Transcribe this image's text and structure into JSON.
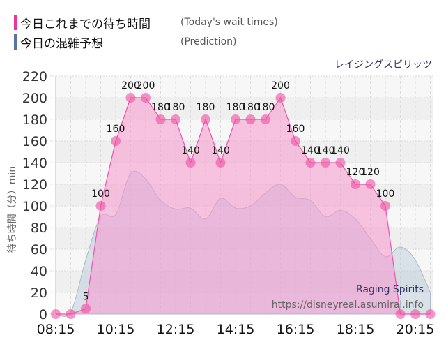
{
  "legend": {
    "actual": {
      "label": "今日これまでの待ち時間",
      "sub": "(Today's wait times)",
      "color": "#ee3399"
    },
    "prediction": {
      "label": "今日の混雑予想",
      "sub": "(Prediction)",
      "color": "#5a74a8"
    }
  },
  "ride_name": "レイジングスピリッツ",
  "watermark": {
    "name": "Raging Spirits",
    "url": "https://disneyreal.asumirai.info"
  },
  "chart_data": {
    "type": "area",
    "title": "レイジングスピリッツ",
    "xlabel": "",
    "ylabel": "待ち時間（分）min",
    "ylim": [
      0,
      220
    ],
    "yticks": [
      0,
      20,
      40,
      60,
      80,
      100,
      120,
      140,
      160,
      180,
      200,
      220
    ],
    "xticks": [
      "08:15",
      "10:15",
      "12:15",
      "14:15",
      "16:15",
      "18:15",
      "20:15"
    ],
    "x": [
      "08:15",
      "08:45",
      "09:15",
      "09:45",
      "10:15",
      "10:45",
      "11:15",
      "11:45",
      "12:15",
      "12:45",
      "13:15",
      "13:45",
      "14:15",
      "14:45",
      "15:15",
      "15:45",
      "16:15",
      "16:45",
      "17:15",
      "17:45",
      "18:15",
      "18:45",
      "19:15",
      "19:45",
      "20:15",
      "20:45"
    ],
    "series": [
      {
        "name": "Today's wait times",
        "values": [
          0,
          0,
          5,
          100,
          160,
          200,
          200,
          180,
          180,
          140,
          180,
          140,
          180,
          180,
          180,
          200,
          160,
          140,
          140,
          140,
          120,
          120,
          100,
          0,
          0,
          0
        ]
      },
      {
        "name": "Prediction",
        "values": [
          0,
          2,
          50,
          90,
          92,
          130,
          125,
          105,
          97,
          98,
          88,
          107,
          98,
          100,
          112,
          120,
          108,
          105,
          90,
          96,
          88,
          70,
          53,
          62,
          50,
          20
        ]
      }
    ],
    "grid": true,
    "legend_position": "top-left"
  }
}
